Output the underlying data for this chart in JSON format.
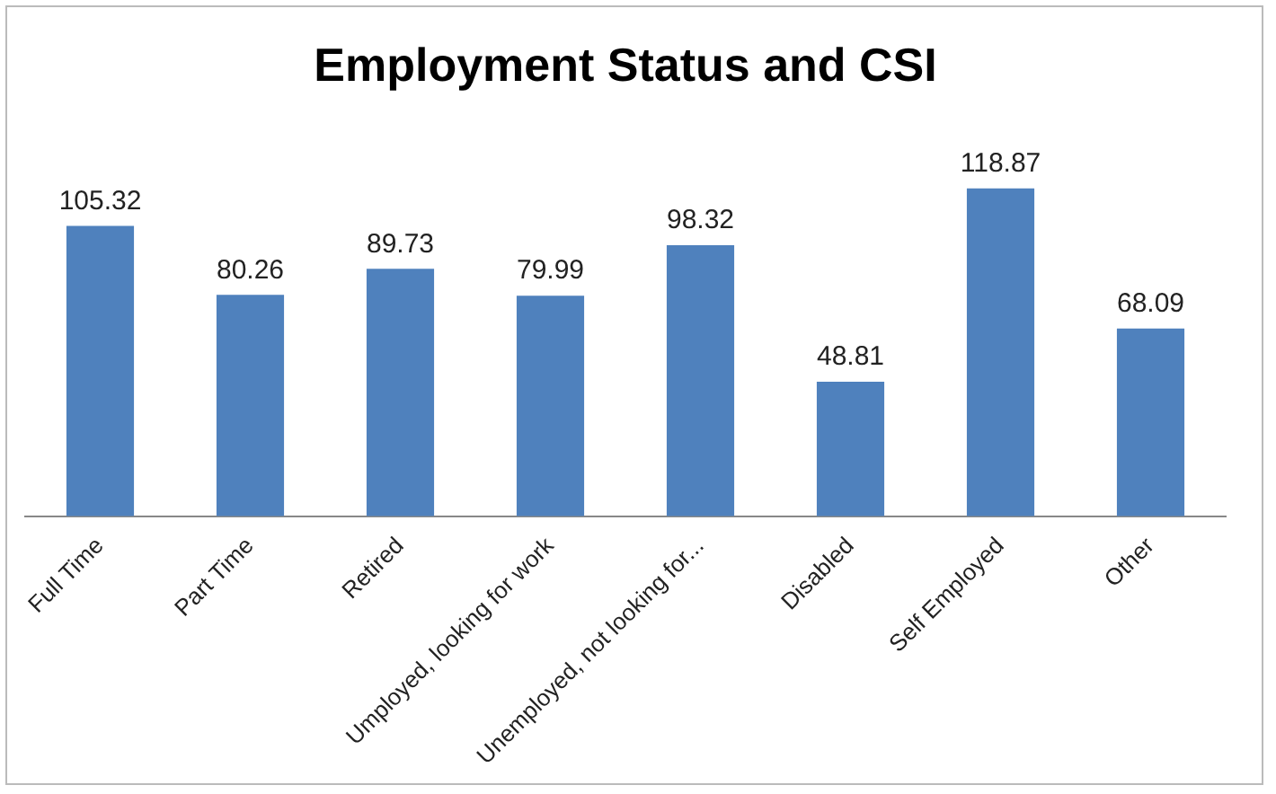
{
  "chart_data": {
    "type": "bar",
    "title": "Employment Status and CSI",
    "categories": [
      "Full Time",
      "Part Time",
      "Retired",
      "Umployed, looking for work",
      "Unemployed, not looking for...",
      "Disabled",
      "Self Employed",
      "Other"
    ],
    "values": [
      105.32,
      80.26,
      89.73,
      79.99,
      98.32,
      48.81,
      118.87,
      68.09
    ],
    "color": "#4f81bd",
    "data_labels": true,
    "grid": false,
    "legend": false
  }
}
